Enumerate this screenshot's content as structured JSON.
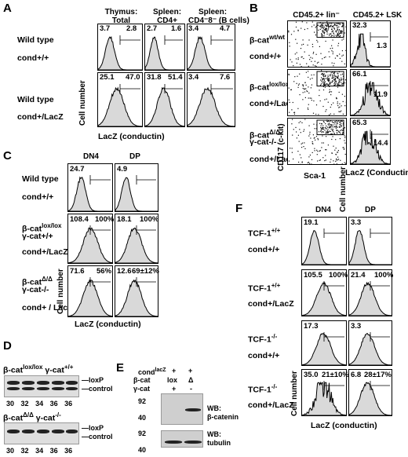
{
  "panels": {
    "A": {
      "letter": "A",
      "columns": [
        "Thymus:\nTotal",
        "Spleen:\nCD4+",
        "Spleen:\nCD4⁻8⁻ (B cells)"
      ],
      "rows": [
        {
          "genotype": "Wild type",
          "cond": "cond+/+",
          "values": [
            [
              "3.7",
              "2.8"
            ],
            [
              "2.7",
              "1.6"
            ],
            [
              "3.4",
              "4.7"
            ]
          ]
        },
        {
          "genotype": "Wild type",
          "cond": "cond+/LacZ",
          "values": [
            [
              "25.1",
              "47.0"
            ],
            [
              "31.8",
              "51.4"
            ],
            [
              "3.4",
              "7.6"
            ]
          ]
        }
      ],
      "ylabel": "Cell number",
      "xlabel": "LacZ (conductin)"
    },
    "B": {
      "letter": "B",
      "col1": "CD45.2+ lin⁻",
      "col2": "CD45.2+ LSK",
      "rows": [
        {
          "geno_main": "β-cat",
          "geno_sup": "wt/wt",
          "geno2": "",
          "cond": "cond+/+",
          "values": [
            "32.3",
            "1.3"
          ]
        },
        {
          "geno_main": "β-cat",
          "geno_sup": "lox/lox",
          "geno2": "",
          "cond": "cond+/LacZ",
          "values": [
            "66.1",
            "11.9"
          ]
        },
        {
          "geno_main": "β-cat",
          "geno_sup": "Δ/Δ",
          "geno2": "γ-cat-/-",
          "cond": "cond+/LacZ",
          "values": [
            "65.3",
            "14.4"
          ]
        }
      ],
      "ylabel_dot": "CD117 (c-kit)",
      "xlabel_dot": "Sca-1",
      "ylabel_hist": "Cell number",
      "xlabel_hist": "LacZ (Conductin)"
    },
    "C": {
      "letter": "C",
      "columns": [
        "DN4",
        "DP"
      ],
      "rows": [
        {
          "geno_main": "Wild type",
          "geno_sup": "",
          "geno2": "",
          "cond": "cond+/+",
          "values": [
            [
              "24.7",
              ""
            ],
            [
              "4.9",
              ""
            ]
          ]
        },
        {
          "geno_main": "β-cat",
          "geno_sup": "lox/lox",
          "geno2": "γ-cat+/+",
          "cond": "cond+/LacZ",
          "values": [
            [
              "108.4",
              "100%"
            ],
            [
              "18.1",
              "100%"
            ]
          ]
        },
        {
          "geno_main": "β-cat",
          "geno_sup": "Δ/Δ",
          "geno2": "γ-cat-/-",
          "cond": "cond+ / LacZ",
          "values": [
            [
              "71.6",
              "56%"
            ],
            [
              "12.6",
              "69±12%"
            ]
          ]
        }
      ],
      "ylabel": "Cell number",
      "xlabel": "LacZ (conductin)"
    },
    "D": {
      "letter": "D",
      "gel1_title_main": "β-cat",
      "gel1_title_sup": "lox/lox",
      "gel1_title2_main": "γ-cat",
      "gel1_title2_sup": "+/+",
      "gel2_title_main": "β-cat",
      "gel2_title_sup": "Δ/Δ",
      "gel2_title2_main": "γ-cat",
      "gel2_title2_sup": "-/-",
      "band_labels": [
        "loxP",
        "control"
      ],
      "lanes": [
        "30",
        "32",
        "34",
        "36",
        "36"
      ]
    },
    "E": {
      "letter": "E",
      "row_labels": [
        "cond",
        "β-cat",
        "γ-cat"
      ],
      "cond_sup": "lacZ",
      "lane1": [
        "+",
        "lox",
        "+"
      ],
      "lane2": [
        "+",
        "Δ",
        "-"
      ],
      "markers_top": [
        "92",
        "40"
      ],
      "markers_bottom": [
        "92",
        "40"
      ],
      "wb1": "WB:\nβ-catenin",
      "wb2": "WB:\ntubulin"
    },
    "F": {
      "letter": "F",
      "columns": [
        "DN4",
        "DP"
      ],
      "rows": [
        {
          "geno": "TCF-1",
          "geno_sup": "+/+",
          "cond": "cond+/+",
          "values": [
            [
              "19.1",
              ""
            ],
            [
              "3.3",
              ""
            ]
          ]
        },
        {
          "geno": "TCF-1",
          "geno_sup": "+/+",
          "cond": "cond+/LacZ",
          "values": [
            [
              "105.5",
              "100%"
            ],
            [
              "21.4",
              "100%"
            ]
          ]
        },
        {
          "geno": "TCF-1",
          "geno_sup": "-/-",
          "cond": "cond+/+",
          "values": [
            [
              "17.3",
              ""
            ],
            [
              "3.3",
              ""
            ]
          ]
        },
        {
          "geno": "TCF-1",
          "geno_sup": "-/-",
          "cond": "cond+/LacZ",
          "values": [
            [
              "35.0",
              "21±10%"
            ],
            [
              "6.8",
              "28±17%"
            ]
          ]
        }
      ],
      "ylabel": "Cell number",
      "xlabel": "LacZ (conductin)"
    }
  }
}
